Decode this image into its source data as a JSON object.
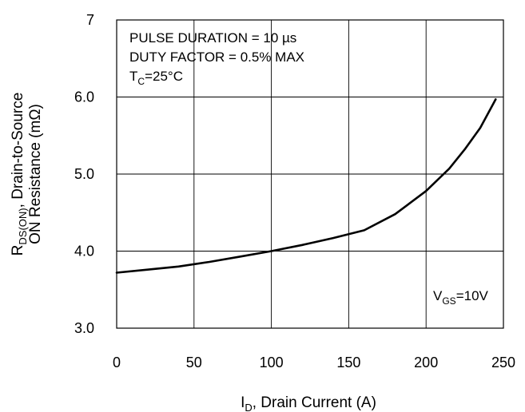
{
  "chart_data": {
    "type": "line",
    "xlabel_main": "I",
    "xlabel_sub": "D",
    "xlabel_rest": ", Drain Current (A)",
    "ylabel_line1_main": "R",
    "ylabel_line1_sub": "DS(ON)",
    "ylabel_line1_rest": ", Drain-to-Source",
    "ylabel_line2": "ON Resistance (mΩ)",
    "xlim": [
      0,
      250
    ],
    "ylim": [
      3.0,
      7.0
    ],
    "x_ticks": [
      0,
      50,
      100,
      150,
      200,
      250
    ],
    "x_tick_labels": [
      "0",
      "50",
      "100",
      "150",
      "200",
      "250"
    ],
    "y_ticks": [
      3.0,
      4.0,
      5.0,
      6.0,
      7.0
    ],
    "y_tick_labels": [
      "3.0",
      "4.0",
      "5.0",
      "6.0",
      "7"
    ],
    "grid": true,
    "series": [
      {
        "x": [
          0,
          20,
          40,
          60,
          80,
          100,
          120,
          140,
          160,
          180,
          200,
          215,
          225,
          235,
          245
        ],
        "y": [
          3.72,
          3.76,
          3.8,
          3.86,
          3.93,
          4.0,
          4.08,
          4.17,
          4.27,
          4.48,
          4.78,
          5.07,
          5.32,
          5.6,
          5.97
        ],
        "color": "#000000"
      }
    ],
    "annotations": {
      "pulse_duration": "PULSE DURATION = 10 µs",
      "duty_factor": "DUTY FACTOR = 0.5% MAX",
      "tc_main": "T",
      "tc_sub": "C",
      "tc_rest": "=25°C",
      "vgs_main": "V",
      "vgs_sub": "GS",
      "vgs_rest": "=10V"
    }
  }
}
